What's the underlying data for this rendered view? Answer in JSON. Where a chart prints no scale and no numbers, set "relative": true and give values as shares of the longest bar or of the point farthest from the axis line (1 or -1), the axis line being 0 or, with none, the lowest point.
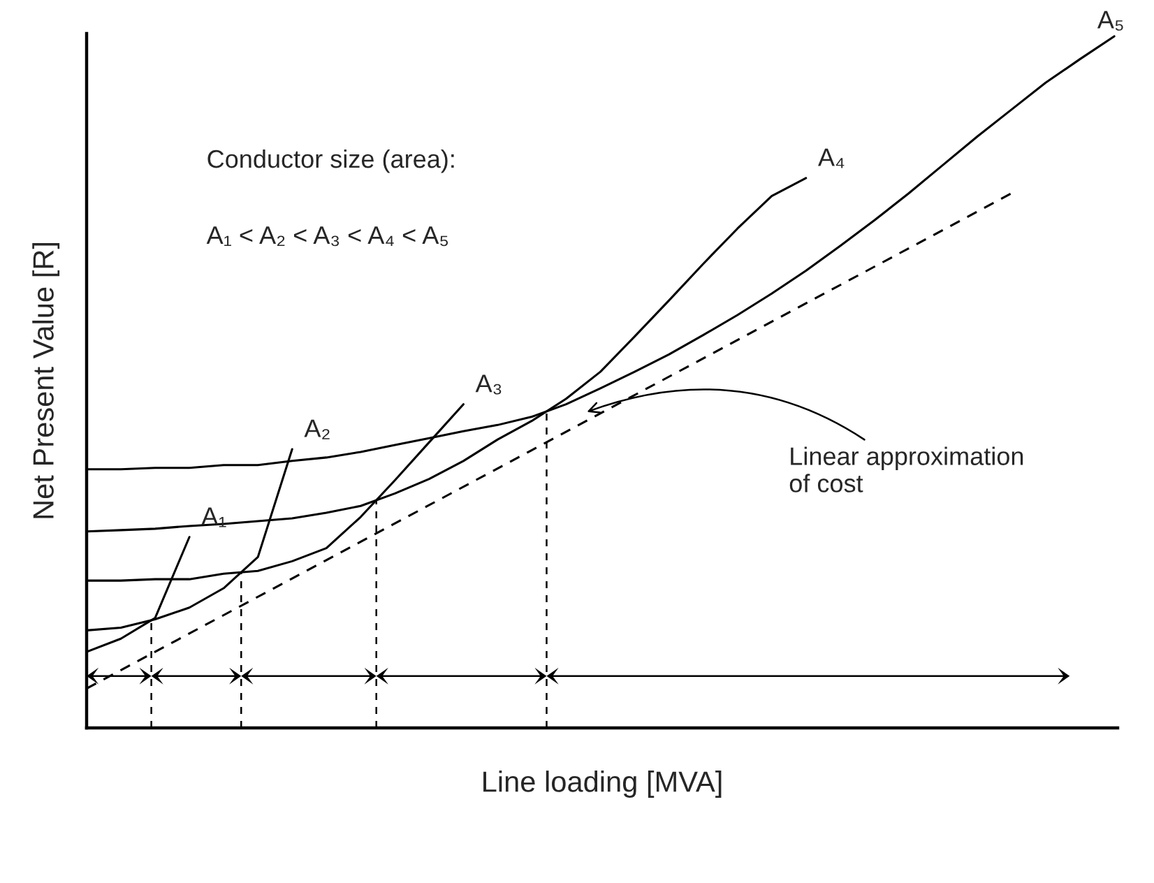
{
  "chart_data": {
    "type": "line",
    "relative": true,
    "xlabel": "Line loading [MVA]",
    "ylabel": "Net Present Value [R]",
    "categories": [
      null,
      null,
      null,
      null,
      null,
      null,
      null,
      null,
      null,
      null,
      null,
      null,
      null,
      null,
      null,
      null,
      null,
      null,
      null,
      null,
      null,
      null,
      null,
      null,
      null,
      null,
      null,
      null,
      null,
      null,
      null
    ],
    "series": [
      {
        "name": "A₁",
        "color": "#000000",
        "values": [
          0.11,
          0.129,
          0.159,
          0.276,
          null,
          null,
          null,
          null,
          null,
          null,
          null,
          null,
          null,
          null,
          null,
          null,
          null,
          null,
          null,
          null,
          null,
          null,
          null,
          null,
          null,
          null,
          null,
          null,
          null,
          null,
          null
        ]
      },
      {
        "name": "A₂",
        "color": "#000000",
        "values": [
          0.141,
          0.145,
          0.157,
          0.174,
          0.202,
          0.247,
          0.403,
          null,
          null,
          null,
          null,
          null,
          null,
          null,
          null,
          null,
          null,
          null,
          null,
          null,
          null,
          null,
          null,
          null,
          null,
          null,
          null,
          null,
          null,
          null,
          null
        ]
      },
      {
        "name": "A₃",
        "color": "#000000",
        "values": [
          0.213,
          0.213,
          0.215,
          0.215,
          0.223,
          0.227,
          0.241,
          0.26,
          0.305,
          0.358,
          0.413,
          0.468,
          null,
          null,
          null,
          null,
          null,
          null,
          null,
          null,
          null,
          null,
          null,
          null,
          null,
          null,
          null,
          null,
          null,
          null,
          null
        ]
      },
      {
        "name": "A₄",
        "color": "#000000",
        "values": [
          0.284,
          0.286,
          0.288,
          0.292,
          0.295,
          0.299,
          0.303,
          0.311,
          0.321,
          0.339,
          0.36,
          0.386,
          0.417,
          0.444,
          0.476,
          0.515,
          0.566,
          0.618,
          0.671,
          0.722,
          0.769,
          0.795,
          null,
          null,
          null,
          null,
          null,
          null,
          null,
          null,
          null
        ]
      },
      {
        "name": "A₅",
        "color": "#000000",
        "values": [
          0.374,
          0.374,
          0.376,
          0.376,
          0.38,
          0.38,
          0.386,
          0.391,
          0.399,
          0.409,
          0.419,
          0.429,
          0.438,
          0.45,
          0.468,
          0.491,
          0.515,
          0.54,
          0.568,
          0.597,
          0.628,
          0.661,
          0.697,
          0.734,
          0.773,
          0.814,
          0.855,
          0.894,
          0.933,
          0.967,
          1.0
        ]
      },
      {
        "color": "#000000",
        "line_style": "dashed",
        "values": [
          0.057,
          null,
          null,
          null,
          null,
          null,
          null,
          null,
          null,
          null,
          null,
          null,
          null,
          null,
          null,
          null,
          null,
          null,
          null,
          null,
          null,
          null,
          null,
          null,
          null,
          null,
          null,
          0.773,
          null,
          null,
          null
        ]
      }
    ],
    "annotations": [
      "Conductor size (area):",
      "A₁ < A₂ < A₃ < A₄ < A₅",
      "Linear approximation\nof cost"
    ],
    "legend": false
  }
}
